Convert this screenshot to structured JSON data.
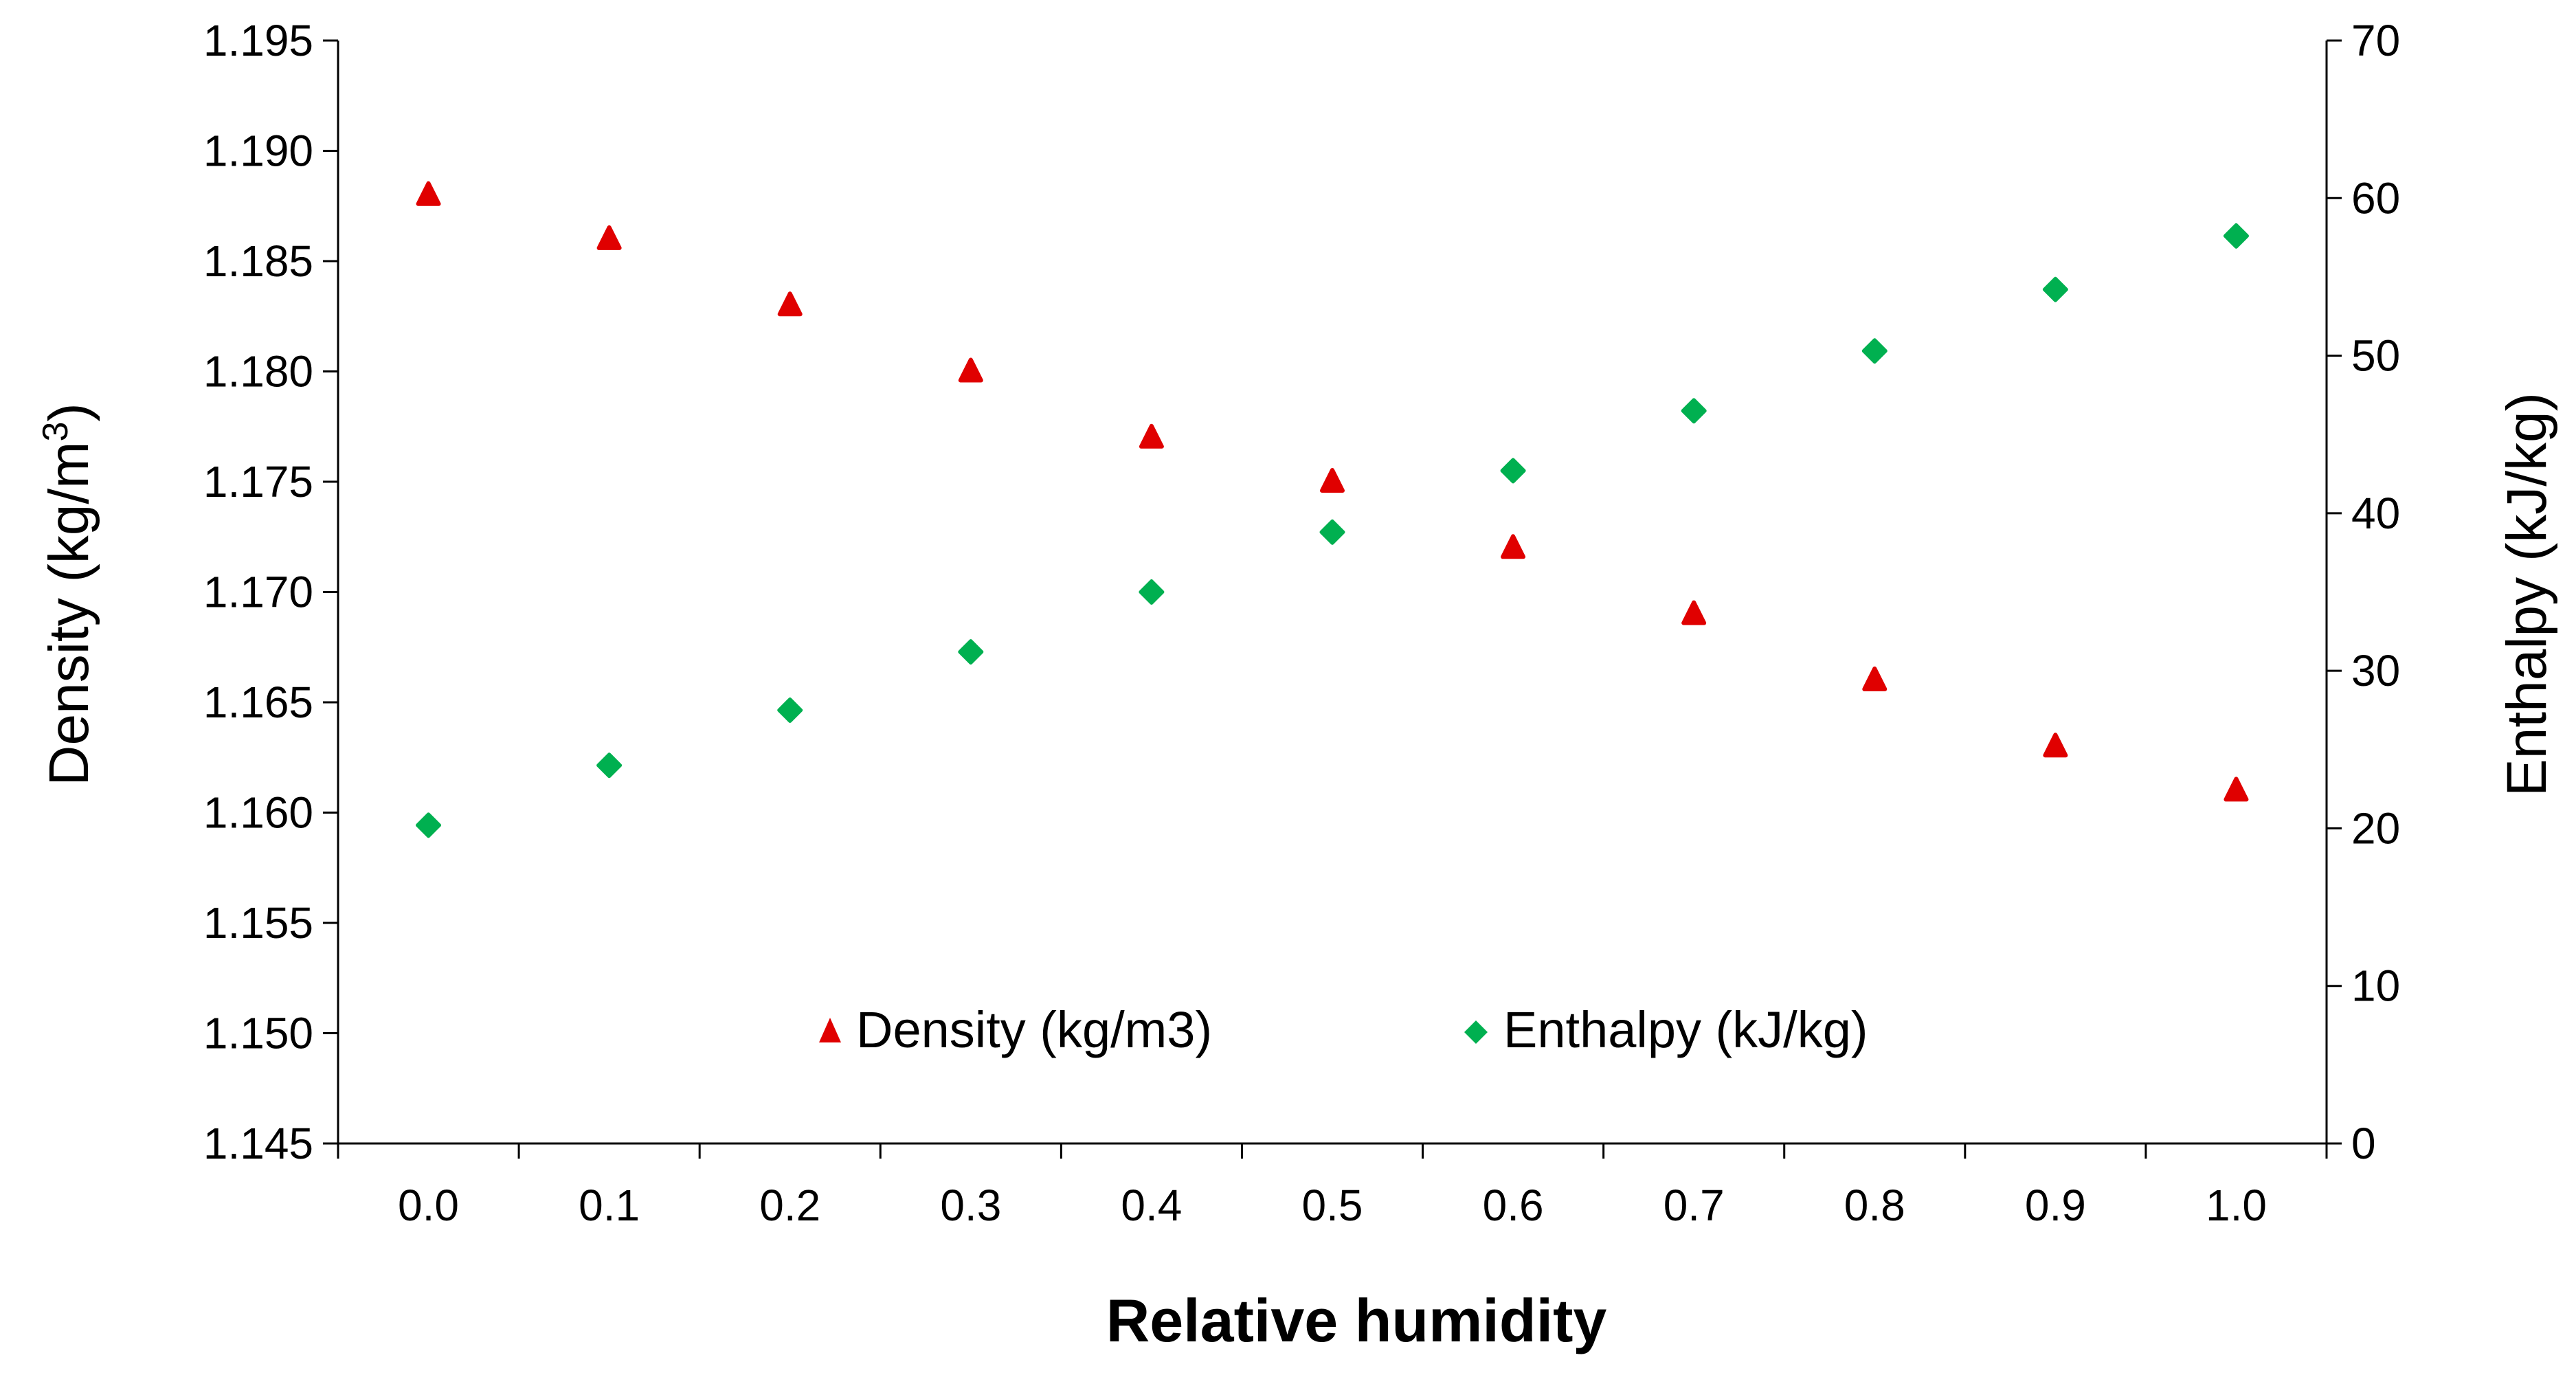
{
  "chart_data": {
    "type": "scatter",
    "x_title": "Relative humidity",
    "y_left_title": "Density (kg/m",
    "y_left_title_sup": "3",
    "y_left_title_close": ")",
    "y_right_title": "Enthalpy (kJ/kg)",
    "x": [
      0.0,
      0.1,
      0.2,
      0.3,
      0.4,
      0.5,
      0.6,
      0.7,
      0.8,
      0.9,
      1.0
    ],
    "x_tick_labels": [
      "0.0",
      "0.1",
      "0.2",
      "0.3",
      "0.4",
      "0.5",
      "0.6",
      "0.7",
      "0.8",
      "0.9",
      "1.0"
    ],
    "y_left_ticks": [
      "1.145",
      "1.150",
      "1.155",
      "1.160",
      "1.165",
      "1.170",
      "1.175",
      "1.180",
      "1.185",
      "1.190",
      "1.195"
    ],
    "y_left_lim": [
      1.145,
      1.195
    ],
    "y_right_ticks": [
      "0",
      "10",
      "20",
      "30",
      "40",
      "50",
      "60",
      "70"
    ],
    "y_right_lim": [
      0,
      70
    ],
    "series": [
      {
        "name": "Density (kg/m3)",
        "axis": "left",
        "marker": "triangle",
        "color": "#e00000",
        "values": [
          1.188,
          1.186,
          1.183,
          1.18,
          1.177,
          1.175,
          1.172,
          1.169,
          1.166,
          1.163,
          1.161
        ]
      },
      {
        "name": "Enthalpy (kJ/kg)",
        "axis": "right",
        "marker": "diamond",
        "color": "#00b050",
        "values": [
          20.2,
          24.0,
          27.5,
          31.2,
          35.0,
          38.8,
          42.7,
          46.5,
          50.3,
          54.2,
          57.6
        ]
      }
    ],
    "legend_position": "bottom-center"
  }
}
